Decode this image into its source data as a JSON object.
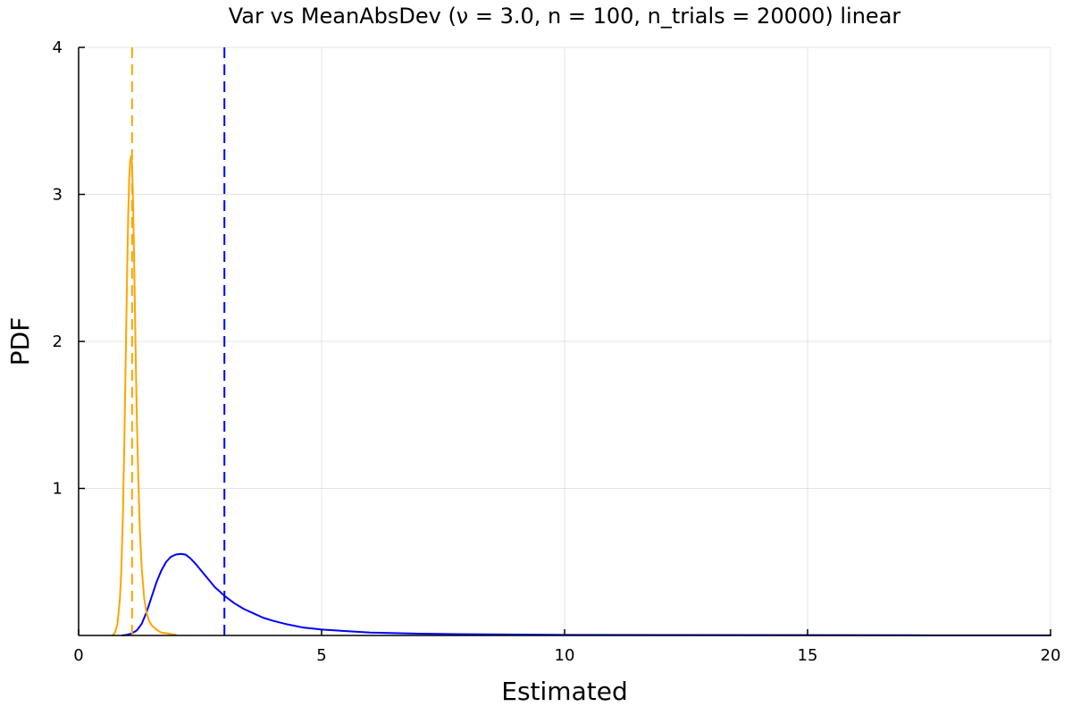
{
  "chart_data": {
    "type": "line",
    "title": "Var vs MeanAbsDev (ν = 3.0, n = 100, n_trials = 20000) linear",
    "xlabel": "Estimated",
    "ylabel": "PDF",
    "xlim": [
      0,
      20
    ],
    "ylim": [
      0,
      4
    ],
    "xticks": [
      0,
      5,
      10,
      15,
      20
    ],
    "yticks": [
      1,
      2,
      3,
      4
    ],
    "xtick_labels": [
      "0",
      "5",
      "10",
      "15",
      "20"
    ],
    "ytick_labels": [
      "1",
      "2",
      "3",
      "4"
    ],
    "grid": true,
    "legend": "none",
    "series": [
      {
        "color": "#0000ff",
        "style": "solid",
        "x": [
          0.9,
          1.0,
          1.1,
          1.2,
          1.3,
          1.4,
          1.5,
          1.6,
          1.7,
          1.8,
          1.9,
          2.0,
          2.1,
          2.2,
          2.3,
          2.4,
          2.5,
          2.6,
          2.7,
          2.8,
          2.9,
          3.0,
          3.2,
          3.4,
          3.6,
          3.8,
          4.0,
          4.3,
          4.6,
          5.0,
          5.5,
          6.0,
          7.0,
          8.0,
          9.0,
          10.0,
          12.0,
          15.0,
          17.5,
          20.0
        ],
        "y": [
          0.0,
          0.005,
          0.015,
          0.035,
          0.08,
          0.16,
          0.26,
          0.36,
          0.44,
          0.5,
          0.535,
          0.55,
          0.555,
          0.55,
          0.525,
          0.49,
          0.45,
          0.41,
          0.37,
          0.33,
          0.3,
          0.27,
          0.22,
          0.18,
          0.15,
          0.12,
          0.1,
          0.075,
          0.055,
          0.04,
          0.03,
          0.02,
          0.012,
          0.008,
          0.006,
          0.004,
          0.003,
          0.002,
          0.001,
          0.001
        ]
      },
      {
        "color": "#ffa500",
        "style": "solid",
        "x": [
          0.7,
          0.75,
          0.8,
          0.85,
          0.88,
          0.91,
          0.94,
          0.97,
          1.0,
          1.02,
          1.04,
          1.06,
          1.08,
          1.1,
          1.12,
          1.14,
          1.16,
          1.18,
          1.2,
          1.23,
          1.26,
          1.3,
          1.35,
          1.4,
          1.45,
          1.5,
          1.6,
          1.7,
          1.8,
          1.9,
          2.0
        ],
        "y": [
          0.0,
          0.02,
          0.08,
          0.25,
          0.45,
          0.8,
          1.3,
          1.9,
          2.5,
          2.85,
          3.1,
          3.22,
          3.26,
          3.2,
          2.95,
          2.6,
          2.2,
          1.8,
          1.45,
          1.05,
          0.72,
          0.45,
          0.25,
          0.15,
          0.1,
          0.07,
          0.04,
          0.02,
          0.015,
          0.01,
          0.005
        ]
      }
    ],
    "vlines": [
      {
        "x": 3.0,
        "color": "#0000ff",
        "style": "dashed"
      },
      {
        "x": 1.1,
        "color": "#ffa500",
        "style": "dashed"
      }
    ]
  }
}
